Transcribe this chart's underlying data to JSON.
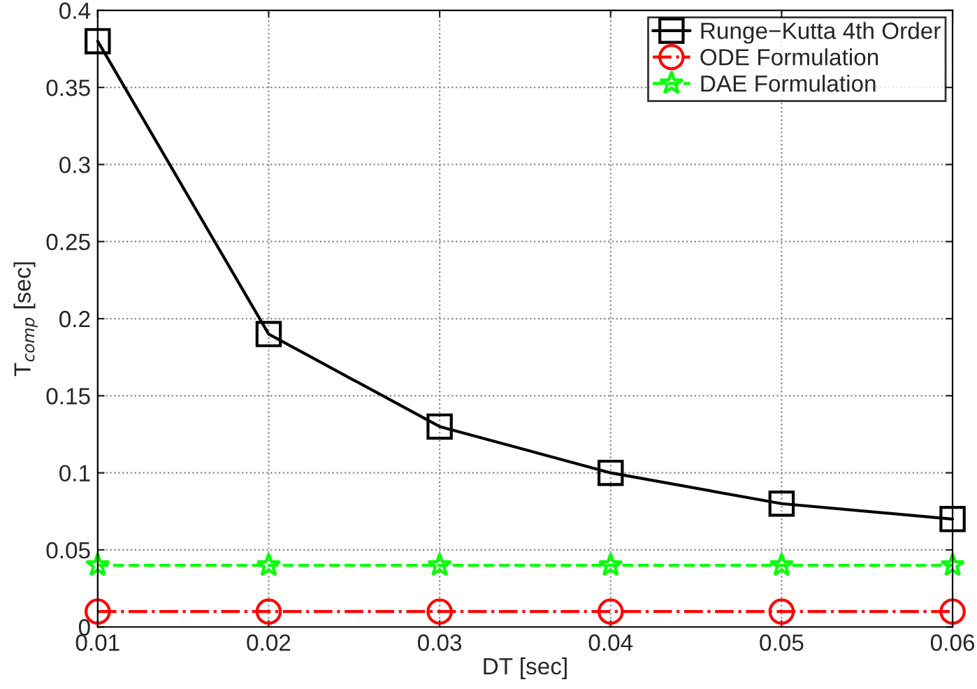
{
  "chart_data": {
    "type": "line",
    "xlabel": "DT [sec]",
    "ylabel": "T$_{comp}$ [sec]",
    "x": [
      0.01,
      0.02,
      0.03,
      0.04,
      0.05,
      0.06
    ],
    "series": [
      {
        "name": "Runge−Kutta 4th Order",
        "color": "#000000",
        "marker": "square",
        "line_style": "solid",
        "values": [
          0.38,
          0.19,
          0.13,
          0.1,
          0.08,
          0.07
        ]
      },
      {
        "name": "ODE Formulation",
        "color": "#ff0000",
        "marker": "circle",
        "line_style": "dashdot",
        "values": [
          0.01,
          0.01,
          0.01,
          0.01,
          0.01,
          0.01
        ]
      },
      {
        "name": "DAE Formulation",
        "color": "#00ff00",
        "marker": "star",
        "line_style": "dashed",
        "values": [
          0.04,
          0.04,
          0.04,
          0.04,
          0.04,
          0.04
        ]
      }
    ],
    "xlim": [
      0.01,
      0.06
    ],
    "xticks": [
      0.01,
      0.02,
      0.03,
      0.04,
      0.05,
      0.06
    ],
    "ylim": [
      0,
      0.4
    ],
    "yticks": [
      0,
      0.05,
      0.1,
      0.15,
      0.2,
      0.25,
      0.3,
      0.35,
      0.4
    ],
    "grid": true,
    "legend": "top right"
  }
}
